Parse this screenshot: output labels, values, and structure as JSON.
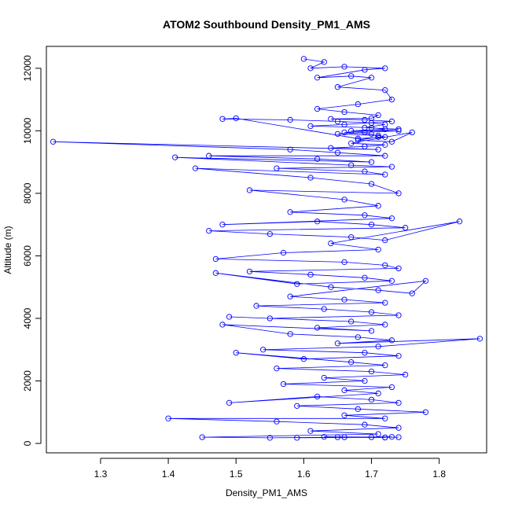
{
  "chart_data": {
    "type": "line",
    "title": "ATOM2 Southbound Density_PM1_AMS",
    "xlabel": "Density_PM1_AMS",
    "ylabel": "Altitude (m)",
    "xlim": [
      1.22,
      1.87
    ],
    "ylim": [
      -300,
      12700
    ],
    "x_ticks": [
      1.3,
      1.4,
      1.5,
      1.6,
      1.7,
      1.8
    ],
    "y_ticks": [
      0,
      2000,
      4000,
      6000,
      8000,
      10000,
      12000
    ],
    "grid": false,
    "legend": "none",
    "series": [
      {
        "marker": "open-circle",
        "color": "#0000ff",
        "x": [
          1.6,
          1.63,
          1.61,
          1.66,
          1.72,
          1.69,
          1.62,
          1.67,
          1.7,
          1.65,
          1.72,
          1.73,
          1.68,
          1.62,
          1.66,
          1.71,
          1.7,
          1.64,
          1.69,
          1.73,
          1.66,
          1.61,
          1.7,
          1.72,
          1.67,
          1.74,
          1.69,
          1.65,
          1.71,
          1.72,
          1.68,
          1.5,
          1.48,
          1.58,
          1.65,
          1.7,
          1.72,
          1.69,
          1.74,
          1.66,
          1.7,
          1.71,
          1.68,
          1.73,
          1.76,
          1.67,
          1.72,
          1.69,
          1.64,
          1.71,
          1.23,
          1.58,
          1.65,
          1.72,
          1.46,
          1.62,
          1.7,
          1.41,
          1.67,
          1.73,
          1.56,
          1.69,
          1.72,
          1.44,
          1.61,
          1.7,
          1.74,
          1.52,
          1.66,
          1.71,
          1.58,
          1.69,
          1.73,
          1.48,
          1.62,
          1.7,
          1.75,
          1.46,
          1.55,
          1.67,
          1.72,
          1.83,
          1.64,
          1.71,
          1.57,
          1.47,
          1.66,
          1.72,
          1.74,
          1.52,
          1.61,
          1.69,
          1.73,
          1.59,
          1.47,
          1.64,
          1.71,
          1.76,
          1.78,
          1.58,
          1.66,
          1.72,
          1.53,
          1.63,
          1.7,
          1.74,
          1.55,
          1.49,
          1.67,
          1.72,
          1.62,
          1.7,
          1.48,
          1.58,
          1.68,
          1.73,
          1.65,
          1.86,
          1.71,
          1.54,
          1.69,
          1.74,
          1.6,
          1.5,
          1.67,
          1.72,
          1.56,
          1.7,
          1.75,
          1.63,
          1.69,
          1.57,
          1.73,
          1.66,
          1.71,
          1.49,
          1.62,
          1.7,
          1.74,
          1.59,
          1.68,
          1.78,
          1.66,
          1.72,
          1.4,
          1.56,
          1.69,
          1.74,
          1.61,
          1.71,
          1.45,
          1.55,
          1.66,
          1.72,
          1.63,
          1.74,
          1.59,
          1.7,
          1.72,
          1.65,
          1.73
        ],
        "y": [
          12300,
          12200,
          12000,
          12050,
          12000,
          11950,
          11700,
          11750,
          11700,
          11400,
          11300,
          11000,
          10850,
          10700,
          10600,
          10500,
          10400,
          10380,
          10350,
          10300,
          10200,
          10150,
          10100,
          10050,
          10000,
          10000,
          9950,
          9900,
          9850,
          9800,
          9750,
          10400,
          10380,
          10350,
          10300,
          10250,
          10200,
          10100,
          10050,
          9950,
          9900,
          9800,
          9700,
          9650,
          9950,
          9600,
          9550,
          9500,
          9450,
          9400,
          9650,
          9400,
          9300,
          9200,
          9200,
          9100,
          9000,
          9150,
          8900,
          8850,
          8800,
          8700,
          8600,
          8800,
          8500,
          8300,
          8000,
          8100,
          7800,
          7600,
          7400,
          7300,
          7200,
          7000,
          7100,
          7000,
          6900,
          6800,
          6700,
          6600,
          6500,
          7100,
          6400,
          6200,
          6100,
          5900,
          5800,
          5700,
          5600,
          5500,
          5400,
          5300,
          5200,
          5100,
          5450,
          5000,
          4900,
          4800,
          5200,
          4700,
          4600,
          4500,
          4400,
          4300,
          4200,
          4100,
          4000,
          4050,
          3900,
          3800,
          3700,
          3600,
          3800,
          3500,
          3400,
          3300,
          3200,
          3350,
          3100,
          3000,
          2900,
          2800,
          2700,
          2900,
          2600,
          2500,
          2400,
          2300,
          2200,
          2100,
          2000,
          1900,
          1800,
          1700,
          1600,
          1300,
          1500,
          1400,
          1300,
          1200,
          1100,
          1000,
          900,
          800,
          800,
          700,
          600,
          500,
          400,
          300,
          200,
          180,
          200,
          190,
          210,
          200,
          180,
          200,
          190,
          200,
          210
        ]
      }
    ]
  }
}
